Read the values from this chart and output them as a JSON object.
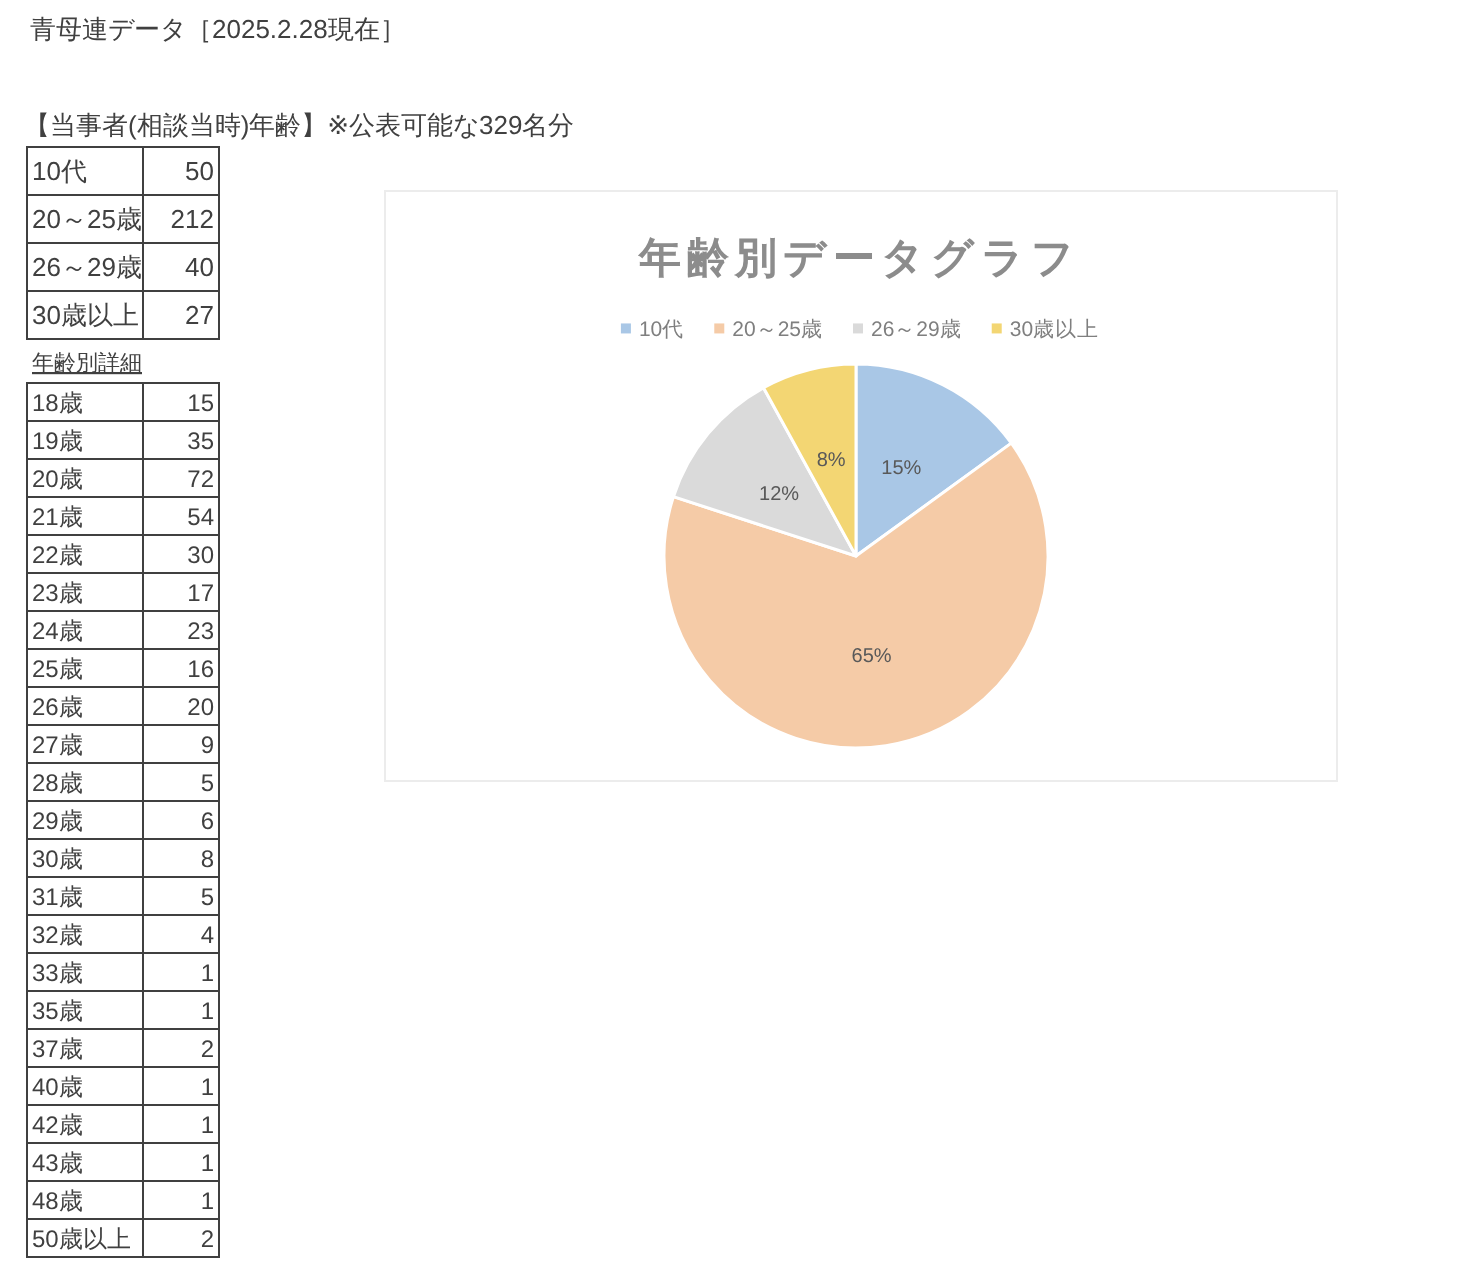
{
  "chart_data": [
    {
      "type": "other",
      "title": "青母連データ［2025.2.28現在］",
      "subtitle": "【当事者(相談当時)年齢】※公表可能な329名分",
      "categories": [
        "10代",
        "20～25歳",
        "26～29歳",
        "30歳以上"
      ],
      "values": [
        50,
        212,
        40,
        27
      ],
      "data_labels": true
    },
    {
      "type": "heatmap",
      "title": "年齢別詳細",
      "categories": [
        null
      ],
      "y_categories": [
        "18歳",
        "19歳",
        "20歳",
        "21歳",
        "22歳",
        "23歳",
        "24歳",
        "25歳",
        "26歳",
        "27歳",
        "28歳",
        "29歳",
        "30歳",
        "31歳",
        "32歳",
        "33歳",
        "35歳",
        "37歳",
        "40歳",
        "42歳",
        "43歳",
        "48歳",
        "50歳以上"
      ],
      "cells": [
        [
          15
        ],
        [
          35
        ],
        [
          72
        ],
        [
          54
        ],
        [
          30
        ],
        [
          17
        ],
        [
          23
        ],
        [
          16
        ],
        [
          20
        ],
        [
          9
        ],
        [
          5
        ],
        [
          6
        ],
        [
          8
        ],
        [
          5
        ],
        [
          4
        ],
        [
          1
        ],
        [
          1
        ],
        [
          2
        ],
        [
          1
        ],
        [
          1
        ],
        [
          1
        ],
        [
          1
        ],
        [
          2
        ]
      ],
      "data_labels": true
    },
    {
      "type": "pie",
      "title": "年齢別データグラフ",
      "categories": [
        "10代",
        "20～25歳",
        "26～29歳",
        "30歳以上"
      ],
      "values": [
        15,
        65,
        12,
        8
      ],
      "value_labels": [
        "15%",
        "65%",
        "12%",
        "8%"
      ],
      "colors": [
        "#a9c7e6",
        "#f5cba7",
        "#dadada",
        "#f3d673"
      ],
      "legend": "top"
    }
  ]
}
